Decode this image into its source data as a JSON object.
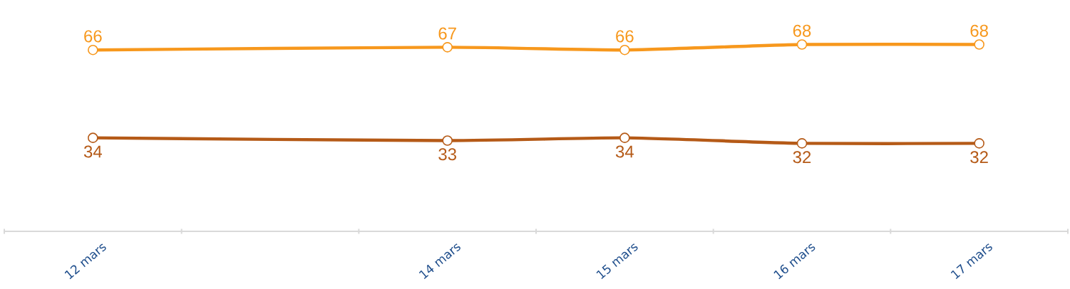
{
  "chart_data": {
    "type": "line",
    "categories": [
      "12 mars",
      null,
      "14 mars",
      "15 mars",
      "16 mars",
      "17 mars"
    ],
    "series": [
      {
        "color": "#f7981d",
        "values": [
          66,
          null,
          67,
          66,
          68,
          68
        ]
      },
      {
        "color": "#b55a17",
        "values": [
          34,
          null,
          33,
          34,
          32,
          32
        ]
      }
    ],
    "data_labels": true,
    "marker": "circle",
    "line_style": "solid",
    "tick_labels": "x"
  }
}
